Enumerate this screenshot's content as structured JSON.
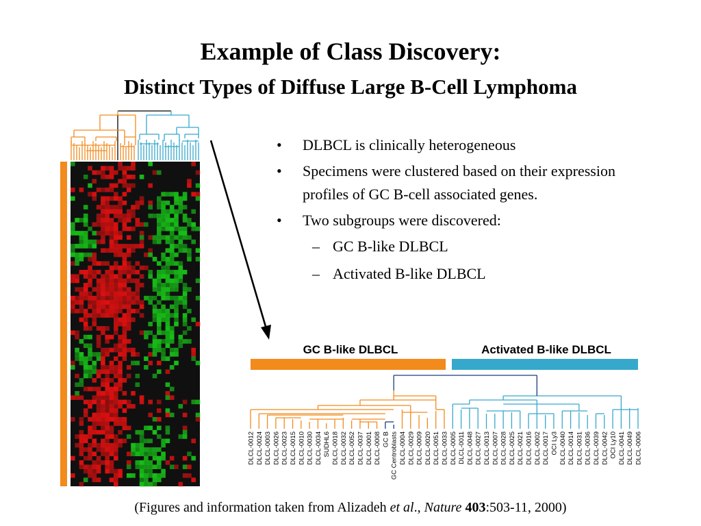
{
  "slide": {
    "title": "Example of Class Discovery:",
    "subtitle": "Distinct Types of Diffuse Large B-Cell Lymphoma"
  },
  "bullets": [
    {
      "text": "DLBCL is clinically heterogeneous"
    },
    {
      "text": "Specimens were clustered based on their expression profiles of GC B-cell associated genes."
    },
    {
      "text": "Two subgroups were discovered:"
    }
  ],
  "sub_bullets": [
    {
      "text": "GC B-like DLBCL"
    },
    {
      "text": "Activated B-like DLBCL"
    }
  ],
  "caption": {
    "prefix": "(Figures and information taken from Alizadeh ",
    "etal": "et al",
    "sep": "., ",
    "journal": "Nature",
    "space": " ",
    "volume": "403",
    "rest": ":503-11, 2000)"
  },
  "figure": {
    "groups": {
      "gc": {
        "label": "GC B-like DLBCL",
        "color": "#f28a1c"
      },
      "activated": {
        "label": "Activated B-like DLBCL",
        "color": "#36a8cc"
      }
    },
    "heatmap_colors": {
      "high": "#e01010",
      "low": "#18c018",
      "neutral": "#101010"
    },
    "samples": [
      "DLCL-0012",
      "DLCL-0024",
      "DLCL-0003",
      "DLCL-0026",
      "DLCL-0023",
      "DLCL-0015",
      "DLCL-0010",
      "DLCL-0030",
      "DLCL-0034",
      "SUDHL6",
      "DLCL-0018",
      "DLCL-0032",
      "DLCL-0052",
      "DLCL-0037",
      "DLCL-0001",
      "DLCL-0008",
      "GC B",
      "GC Centroblasts",
      "DLCL-0004",
      "DLCL-0029",
      "DLCL-0009",
      "DLCL-0020",
      "DLCL-0051",
      "DLCL-0033",
      "DLCL-0005",
      "DLCL-0011",
      "DLCL-0048",
      "DLCL-0027",
      "DLCL-0013",
      "DLCL-0007",
      "DLCL-0028",
      "DLCL-0025",
      "DLCL-0021",
      "DLCL-0016",
      "DLCL-0002",
      "DLCL-0017",
      "OCI Ly3",
      "DLCL-0040",
      "DLCL-0014",
      "DLCL-0031",
      "DLCL-0036",
      "DLCL-0039",
      "DLCL-0042",
      "OCI Ly10",
      "DLCL-0041",
      "DLCL-0049",
      "DLCL-0006"
    ],
    "gc_sample_count": 24
  }
}
